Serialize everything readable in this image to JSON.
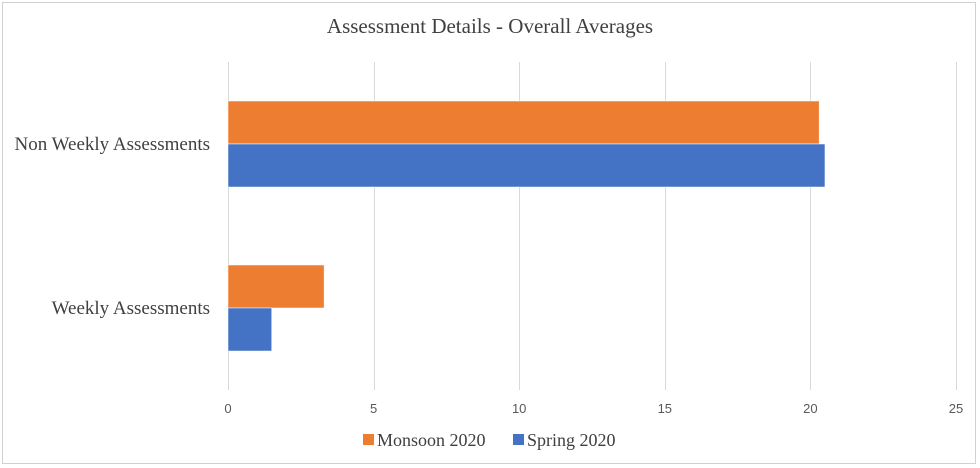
{
  "chart_data": {
    "type": "bar",
    "orientation": "horizontal",
    "title": "Assessment Details - Overall Averages",
    "categories": [
      "Non Weekly Assessments",
      "Weekly Assessments"
    ],
    "series": [
      {
        "name": "Monsoon 2020",
        "color": "#ED7D31",
        "values": [
          20.3,
          3.3
        ]
      },
      {
        "name": "Spring 2020",
        "color": "#4472C4",
        "values": [
          20.5,
          1.5
        ]
      }
    ],
    "xlim": [
      0,
      25
    ],
    "xticks": [
      0,
      5,
      10,
      15,
      20,
      25
    ],
    "grid": true,
    "legend_position": "bottom"
  }
}
